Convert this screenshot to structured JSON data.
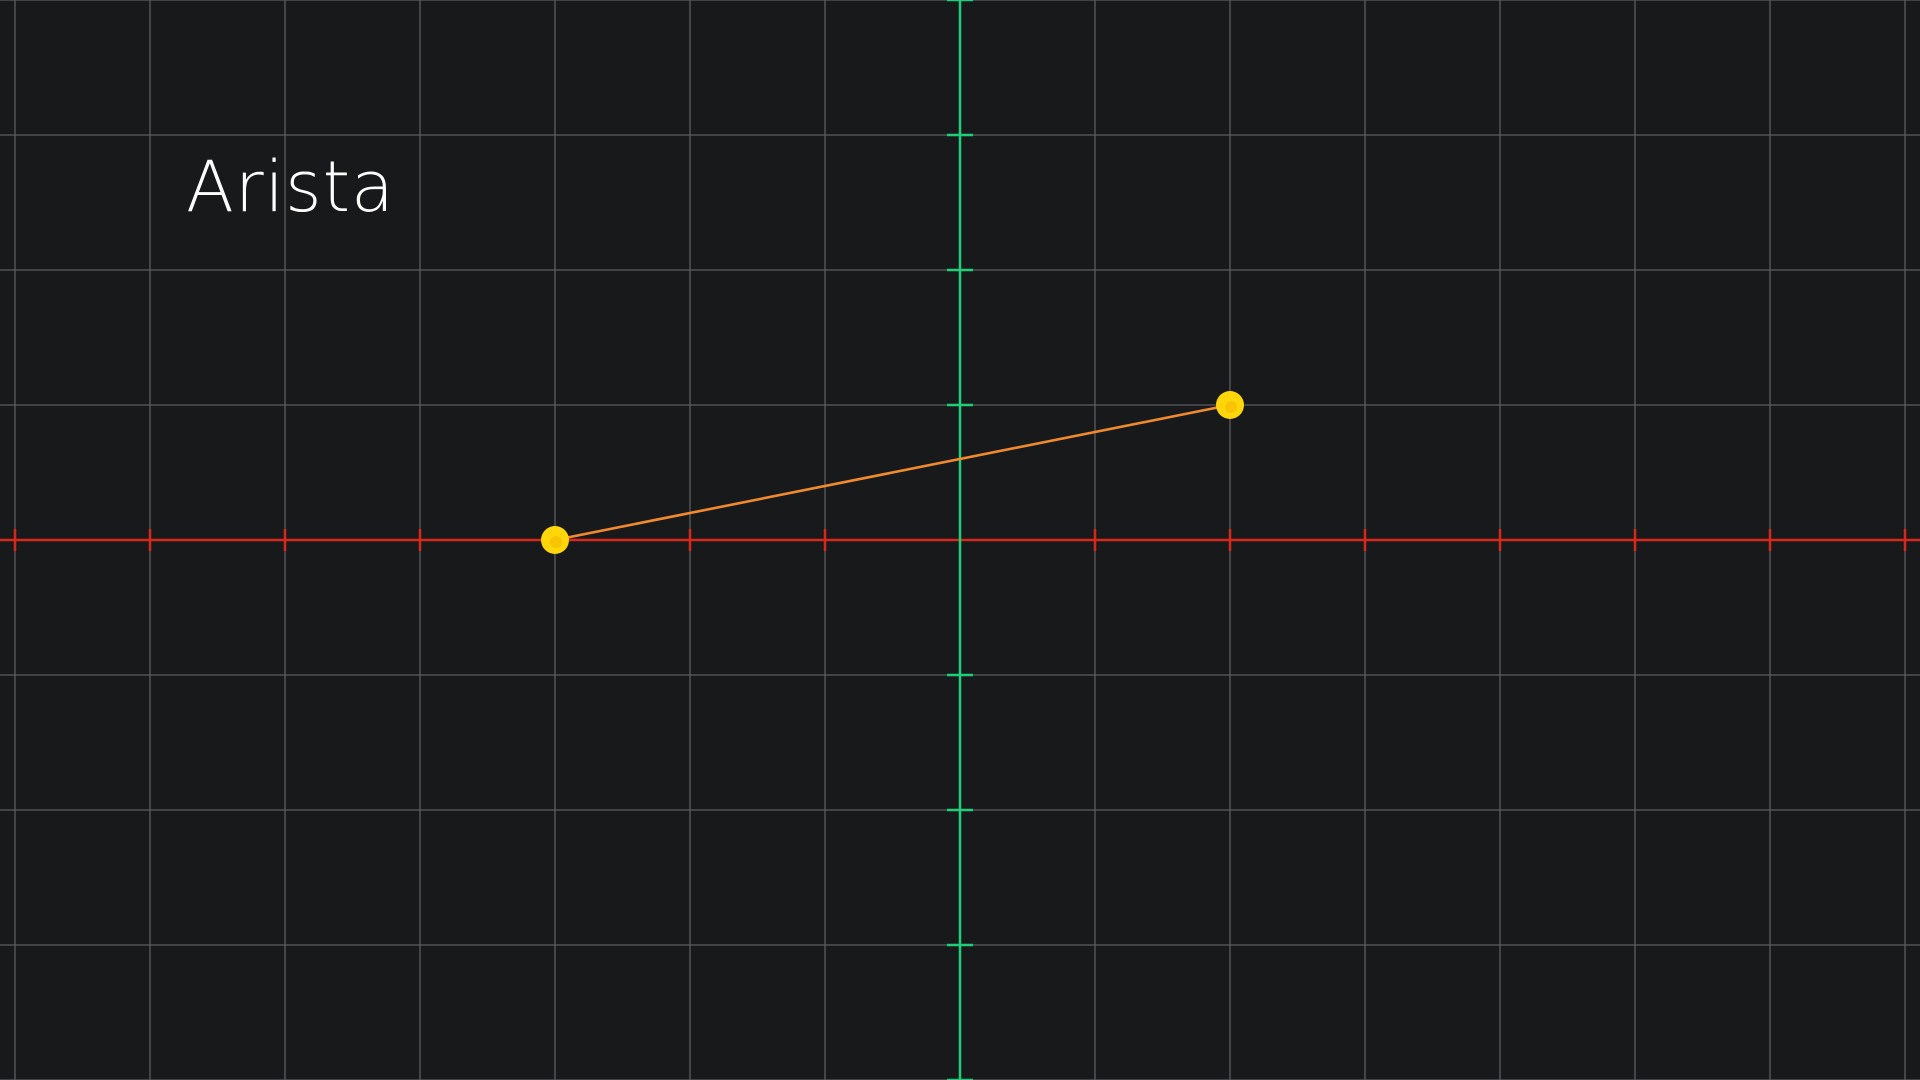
{
  "title": "Arista",
  "colors": {
    "background": "#18191b",
    "grid": "#5b5d61",
    "x_axis": "#d8281c",
    "y_axis": "#1ecf7a",
    "edge": "#f08a2c",
    "vertex": "#ffd60a"
  },
  "graph": {
    "x_range": [
      -7,
      7
    ],
    "y_range": [
      -4,
      4
    ],
    "grid": true,
    "vertices": [
      {
        "name": "vertex-a",
        "x": -3,
        "y": 0
      },
      {
        "name": "vertex-b",
        "x": 2,
        "y": 1
      }
    ],
    "edges": [
      {
        "name": "edge-ab",
        "from": 0,
        "to": 1
      }
    ]
  }
}
